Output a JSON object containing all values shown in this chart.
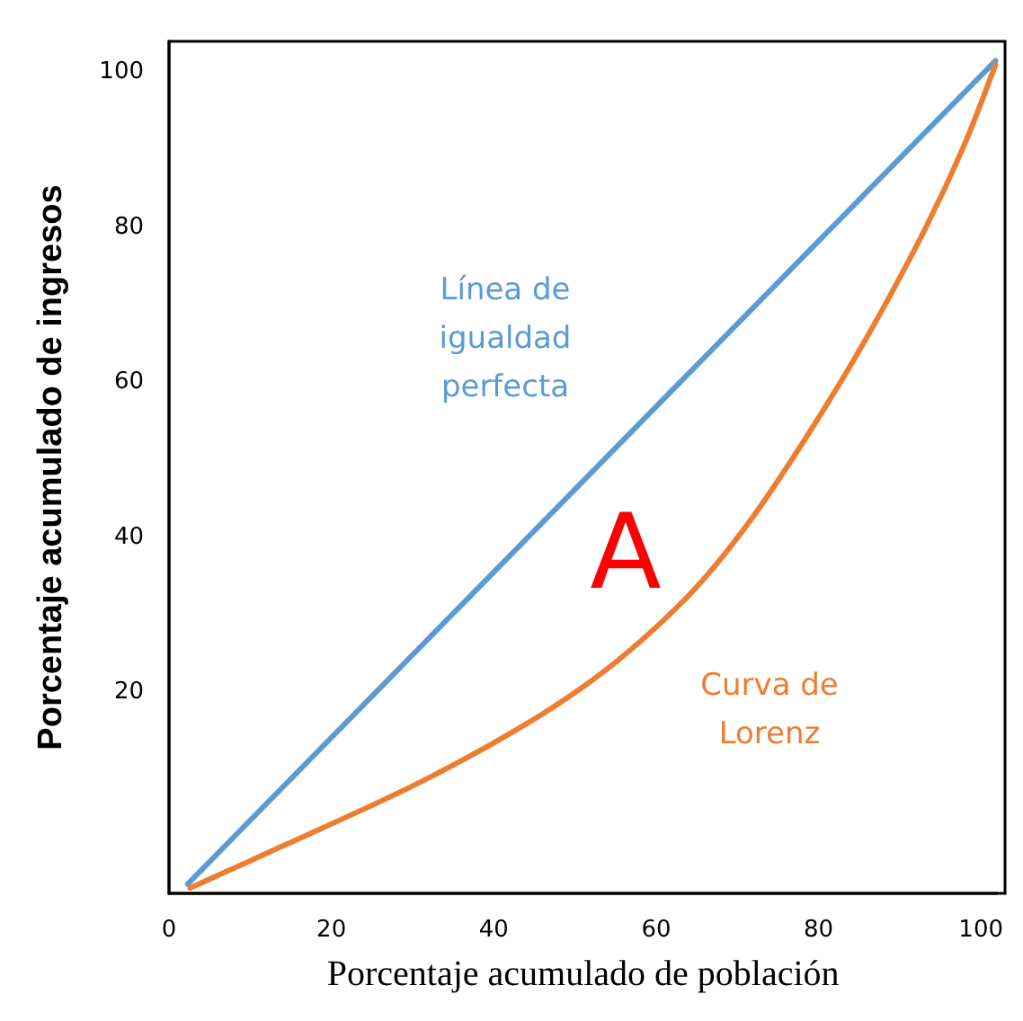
{
  "chart_data": {
    "type": "line",
    "xlabel": "Porcentaje acumulado de población",
    "ylabel": "Porcentaje acumulado de ingresos",
    "xlim": [
      0,
      102
    ],
    "ylim": [
      -6,
      104
    ],
    "xticks": [
      0,
      20,
      40,
      60,
      80,
      100
    ],
    "yticks": [
      20,
      40,
      60,
      80,
      100
    ],
    "grid": false,
    "marker": "none",
    "line_style": "solid",
    "series": [
      {
        "name": "Línea de igualdad perfecta",
        "color": "#5b9bd5",
        "x": [
          2.3,
          101.8
        ],
        "values": [
          -4.8,
          101.5
        ]
      },
      {
        "name": "Curva de Lorenz",
        "color": "#ed7d31",
        "x": [
          2.6,
          14.6,
          28.9,
          39.6,
          48,
          55.9,
          64.5,
          71.5,
          78.8,
          85.8,
          92.8,
          97.9,
          101.8
        ],
        "values": [
          -5.3,
          0.4,
          7.3,
          13.2,
          18.5,
          24.6,
          33,
          42,
          53.4,
          65.5,
          79.1,
          90.5,
          101
        ]
      }
    ],
    "annotations": [
      "A"
    ]
  }
}
